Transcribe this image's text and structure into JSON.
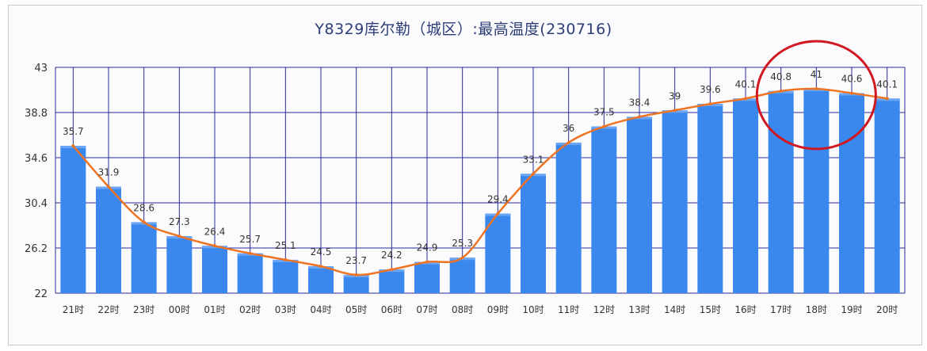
{
  "chart_data": {
    "type": "bar",
    "title": "Y8329库尔勒（城区）:最高温度(230716)",
    "categories": [
      "21时",
      "22时",
      "23时",
      "00时",
      "01时",
      "02时",
      "03时",
      "04时",
      "05时",
      "06时",
      "07时",
      "08时",
      "09时",
      "10时",
      "11时",
      "12时",
      "13时",
      "14时",
      "15时",
      "16时",
      "17时",
      "18时",
      "19时",
      "20时"
    ],
    "series": [
      {
        "type": "bar",
        "values": [
          35.7,
          31.9,
          28.6,
          27.3,
          26.4,
          25.7,
          25.1,
          24.5,
          23.7,
          24.2,
          24.9,
          25.3,
          29.4,
          33.1,
          36,
          37.5,
          38.4,
          39,
          39.6,
          40.1,
          40.8,
          41,
          40.6,
          40.1
        ]
      },
      {
        "type": "line",
        "values": [
          35.7,
          31.9,
          28.6,
          27.3,
          26.4,
          25.7,
          25.1,
          24.5,
          23.7,
          24.2,
          24.9,
          25.3,
          29.4,
          33.1,
          36,
          37.5,
          38.4,
          39,
          39.6,
          40.1,
          40.8,
          41,
          40.6,
          40.1
        ]
      }
    ],
    "y_ticks": [
      "22",
      "26.2",
      "30.4",
      "34.6",
      "38.8",
      "43"
    ],
    "ylim": [
      22,
      43
    ],
    "data_labels": [
      "35.7",
      "31.9",
      "28.6",
      "27.3",
      "26.4",
      "25.7",
      "25.1",
      "24.5",
      "23.7",
      "24.2",
      "24.9",
      "25.3",
      "29.4",
      "33.1",
      "36",
      "37.5",
      "38.4",
      "39",
      "39.6",
      "40.1",
      "40.8",
      "41",
      "40.6",
      "40.1"
    ],
    "grid": true,
    "legend": "none",
    "highlight": {
      "shape": "ellipse",
      "around": [
        "17时",
        "18时",
        "19时"
      ],
      "color": "#d01820"
    },
    "colors": {
      "bar": "#3a87ee",
      "line": "#ee7424",
      "grid": "#2a2a9a",
      "axis_text": "#333333"
    }
  }
}
